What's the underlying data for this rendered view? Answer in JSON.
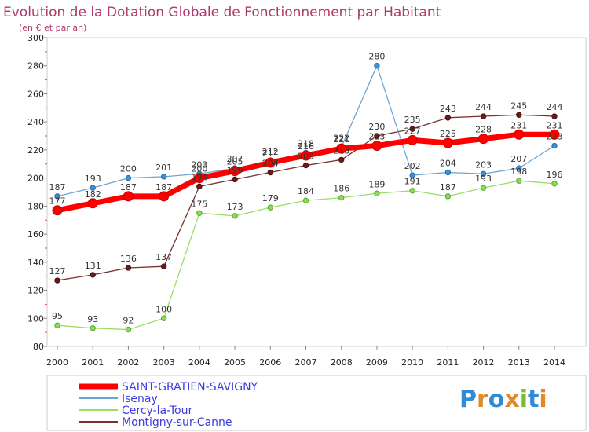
{
  "chart_data": {
    "type": "line",
    "title": "Evolution de la Dotation Globale de Fonctionnement par Habitant",
    "subtitle": "(en € et par an)",
    "xlabel": "",
    "ylabel": "",
    "ylim": [
      80,
      300
    ],
    "yticks": [
      80,
      100,
      120,
      140,
      160,
      180,
      200,
      220,
      240,
      260,
      280,
      300
    ],
    "grid": "off",
    "legend_position": "bottom-left",
    "categories": [
      "2000",
      "2001",
      "2002",
      "2003",
      "2004",
      "2005",
      "2006",
      "2007",
      "2008",
      "2009",
      "2010",
      "2011",
      "2012",
      "2013",
      "2014"
    ],
    "series": [
      {
        "name": "SAINT-GRATIEN-SAVIGNY",
        "color": "#ff0000",
        "values": [
          177,
          182,
          187,
          187,
          200,
          205,
          211,
          216,
          221,
          223,
          227,
          225,
          228,
          231,
          231
        ]
      },
      {
        "name": "Isenay",
        "color": "#6aa5d8",
        "values": [
          187,
          193,
          200,
          201,
          203,
          207,
          212,
          218,
          222,
          280,
          202,
          204,
          203,
          207,
          223
        ]
      },
      {
        "name": "Cercy-la-Tour",
        "color": "#99dd66",
        "values": [
          95,
          93,
          92,
          100,
          175,
          173,
          179,
          184,
          186,
          189,
          191,
          187,
          193,
          198,
          196
        ]
      },
      {
        "name": "Montigny-sur-Canne",
        "color": "#6b1a1a",
        "values": [
          127,
          131,
          136,
          137,
          194,
          199,
          204,
          209,
          213,
          230,
          235,
          243,
          244,
          245,
          244
        ]
      }
    ]
  },
  "logo": {
    "text": "Proxiti",
    "letters": [
      "P",
      "r",
      "o",
      "x",
      "i",
      "t",
      "i"
    ],
    "colors": [
      "#2e8bd6",
      "#e0892a",
      "#2e8bd6",
      "#e0892a",
      "#7cbb35",
      "#2e8bd6",
      "#e0892a"
    ]
  }
}
